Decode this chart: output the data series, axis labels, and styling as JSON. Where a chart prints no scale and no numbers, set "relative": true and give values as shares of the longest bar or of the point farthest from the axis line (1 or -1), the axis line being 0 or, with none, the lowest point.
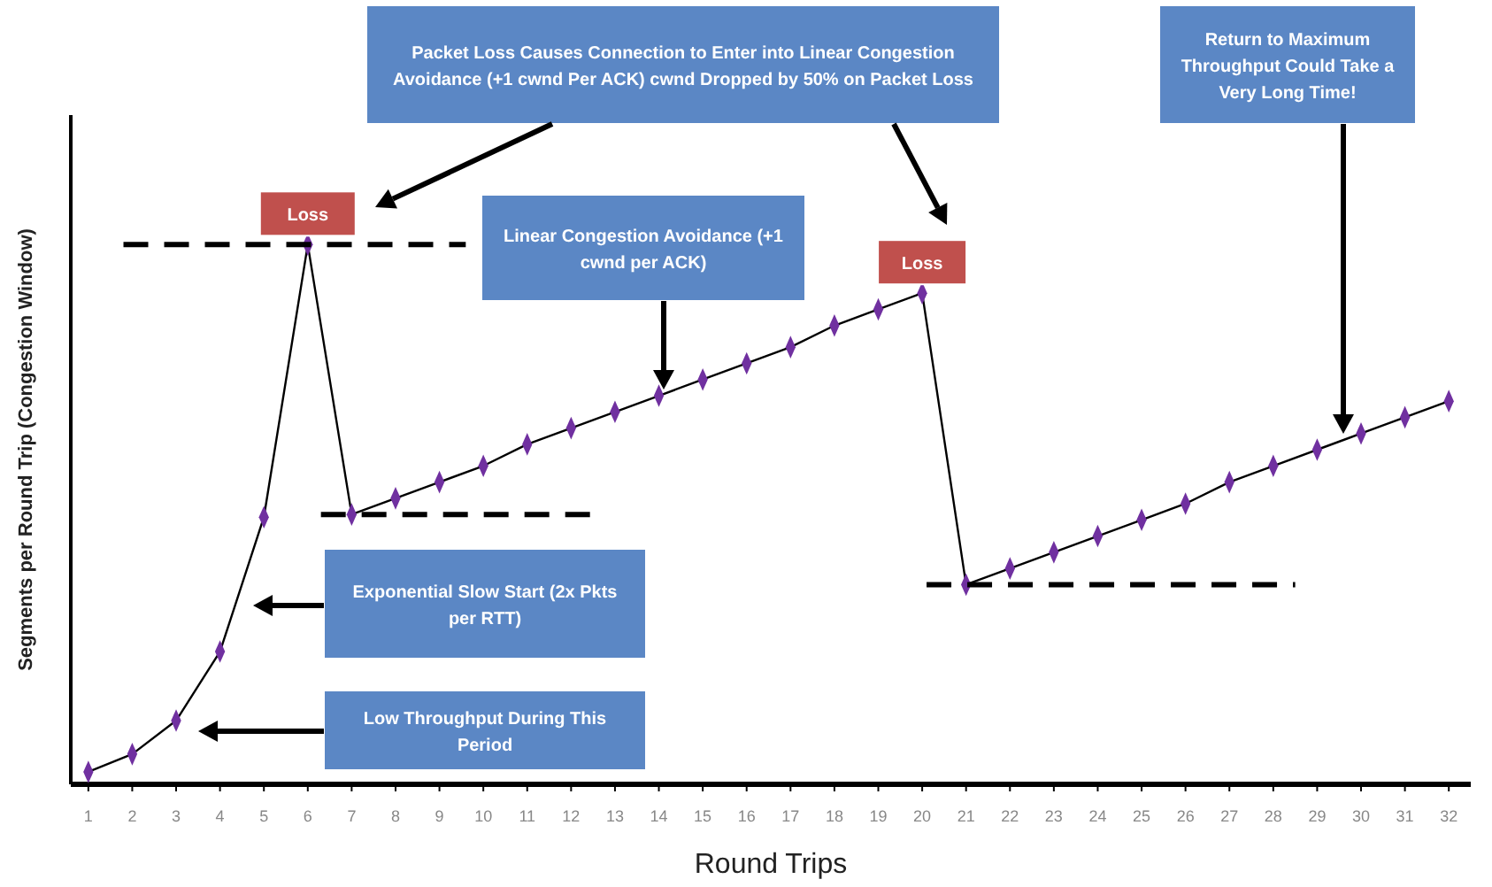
{
  "chart_data": {
    "type": "line",
    "relative": true,
    "xlabel": "Round Trips",
    "ylabel": "Segments per Round Trip (Congestion Window)",
    "x": [
      1,
      2,
      3,
      4,
      5,
      6,
      7,
      8,
      9,
      10,
      11,
      12,
      13,
      14,
      15,
      16,
      17,
      18,
      19,
      20,
      21,
      22,
      23,
      24,
      25,
      26,
      27,
      28,
      29,
      30,
      31,
      32
    ],
    "xlim": [
      0.6,
      32.5
    ],
    "xticks": [
      1,
      2,
      3,
      4,
      5,
      6,
      7,
      8,
      9,
      10,
      11,
      12,
      13,
      14,
      15,
      16,
      17,
      18,
      19,
      20,
      21,
      22,
      23,
      24,
      25,
      26,
      27,
      28,
      29,
      30,
      31,
      32
    ],
    "marker": "diamond",
    "grid": false,
    "series": [
      {
        "color": "#7030a0",
        "values": [
          0.023,
          0.056,
          0.118,
          0.246,
          0.495,
          1,
          0.5,
          0.53,
          0.56,
          0.59,
          0.63,
          0.66,
          0.69,
          0.72,
          0.75,
          0.78,
          0.81,
          0.85,
          0.88,
          0.91,
          0.37,
          0.4,
          0.43,
          0.46,
          0.49,
          0.52,
          0.56,
          0.59,
          0.62,
          0.65,
          0.68,
          0.71
        ]
      },
      {
        "color": "#000000",
        "x": [
          1.8,
          9.6
        ],
        "values": [
          1,
          1
        ],
        "line_style": "dashed",
        "marker": "none"
      },
      {
        "color": "#000000",
        "x": [
          6.3,
          12.5
        ],
        "values": [
          0.5,
          0.5
        ],
        "line_style": "dashed",
        "marker": "none"
      },
      {
        "color": "#000000",
        "x": [
          20.1,
          28.5
        ],
        "values": [
          0.37,
          0.37
        ],
        "line_style": "dashed",
        "marker": "none"
      }
    ],
    "annotations": [
      {
        "text": "Loss",
        "x": 6,
        "y": 1
      },
      {
        "text": "Loss",
        "x": 20,
        "y": 0.91
      },
      "Packet Loss Causes Connection to Enter into Linear Congestion Avoidance (+1 cwnd Per ACK) cwnd Dropped by 50% on Packet Loss",
      "Linear Congestion Avoidance (+1 cwnd per ACK)",
      "Return to Maximum Throughput Could Take a Very Long Time!",
      "Exponential Slow Start (2x Pkts per RTT)",
      "Low Throughput During This Period"
    ]
  }
}
